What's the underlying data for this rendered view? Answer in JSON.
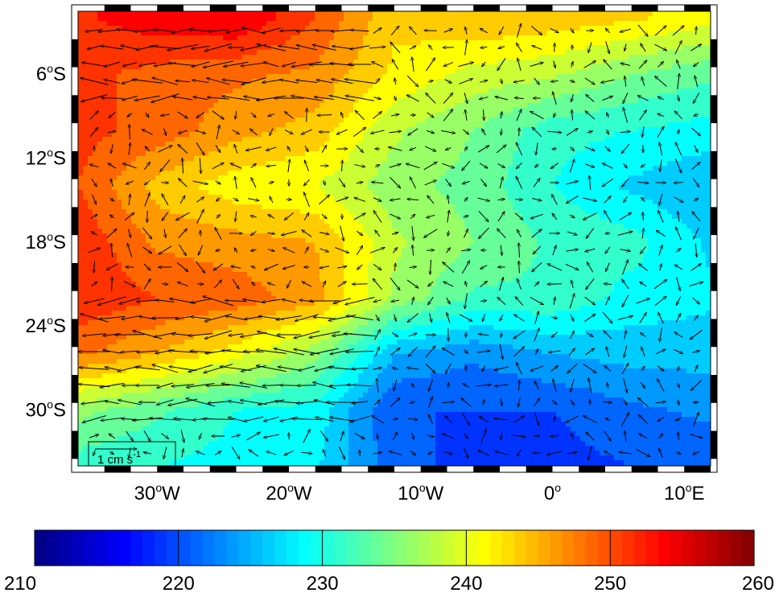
{
  "map": {
    "lat_ticks": [
      {
        "deg": "6",
        "hemi": "S",
        "value": -6
      },
      {
        "deg": "12",
        "hemi": "S",
        "value": -12
      },
      {
        "deg": "18",
        "hemi": "S",
        "value": -18
      },
      {
        "deg": "24",
        "hemi": "S",
        "value": -24
      },
      {
        "deg": "30",
        "hemi": "S",
        "value": -30
      }
    ],
    "lon_ticks": [
      {
        "deg": "30",
        "hemi": "W",
        "value": -30
      },
      {
        "deg": "20",
        "hemi": "W",
        "value": -20
      },
      {
        "deg": "10",
        "hemi": "W",
        "value": -10
      },
      {
        "deg": "0",
        "hemi": "",
        "value": 0
      },
      {
        "deg": "10",
        "hemi": "E",
        "value": 10
      }
    ],
    "lon_range": [
      -36,
      12
    ],
    "lat_range": [
      -34,
      -1.5
    ],
    "field_grid": {
      "lats": [
        -2,
        -6,
        -10,
        -14,
        -18,
        -22,
        -26,
        -30,
        -34
      ],
      "lons": [
        -36,
        -30,
        -24,
        -18,
        -12,
        -6,
        0,
        6,
        12
      ],
      "values": [
        [
          252,
          254,
          255,
          250,
          243,
          245,
          244,
          243,
          241
        ],
        [
          251,
          249,
          248,
          247,
          242,
          239,
          238,
          235,
          233
        ],
        [
          251,
          249,
          246,
          244,
          238,
          235,
          231,
          230,
          229
        ],
        [
          250,
          244,
          241,
          240,
          236,
          234,
          230,
          227,
          225
        ],
        [
          252,
          247,
          246,
          245,
          238,
          235,
          232,
          231,
          227
        ],
        [
          252,
          250,
          249,
          246,
          237,
          232,
          232,
          229,
          228
        ],
        [
          248,
          245,
          241,
          236,
          225,
          223,
          225,
          226,
          226
        ],
        [
          236,
          233,
          230,
          229,
          220,
          220,
          220,
          222,
          223
        ],
        [
          231,
          230,
          229,
          228,
          221,
          219,
          219,
          220,
          221
        ]
      ]
    },
    "vector_key": {
      "label": "1 cm s",
      "exponent": "-1"
    }
  },
  "colorbar": {
    "min": 210,
    "max": 260,
    "colormap": "jet",
    "tick_labels": [
      "210",
      "220",
      "230",
      "240",
      "250",
      "260"
    ]
  }
}
